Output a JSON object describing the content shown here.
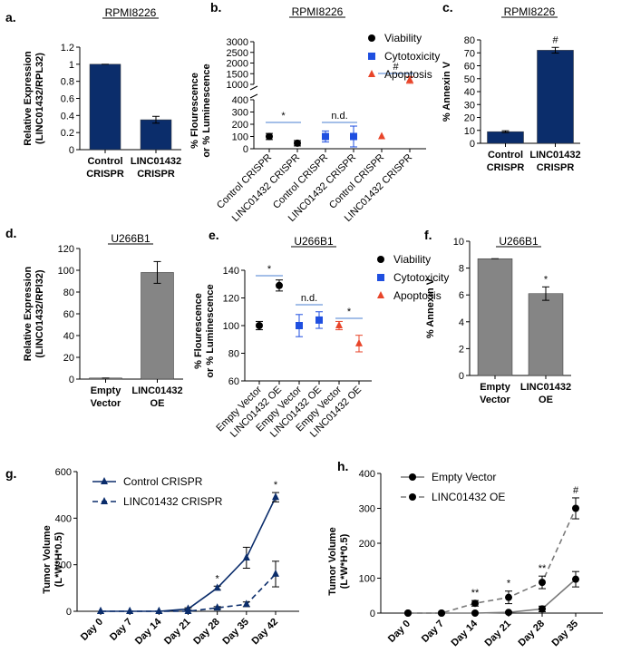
{
  "chart_data": [
    {
      "id": "a",
      "panel_label": "a.",
      "type": "bar",
      "title": "RPMI8226",
      "ylabel": [
        "Relative Expression",
        "(LINC01432/RPL32)"
      ],
      "categories": [
        [
          "Control",
          "CRISPR"
        ],
        [
          "LINC01432",
          "CRISPR"
        ]
      ],
      "values": [
        1.0,
        0.35
      ],
      "errors": [
        0,
        0.04
      ],
      "ylim": [
        0,
        1.2
      ],
      "yticks": [
        "0",
        "0.2",
        "0.4",
        "0.6",
        "0.8",
        "1",
        "1.2"
      ],
      "ytick_values": [
        0,
        0.2,
        0.4,
        0.6,
        0.8,
        1.0,
        1.2
      ],
      "color": "#0b2d6b",
      "annotations": []
    },
    {
      "id": "b",
      "panel_label": "b.",
      "type": "scatter",
      "title": "RPMI8226",
      "ylabel": [
        "% Flourescence",
        "or % Luminescence"
      ],
      "lower_ylim": [
        0,
        400
      ],
      "lower_yticks": [
        "0",
        "100",
        "200",
        "300",
        "400"
      ],
      "lower_ytick_values": [
        0,
        100,
        200,
        300,
        400
      ],
      "upper_ylim": [
        1000,
        3000
      ],
      "upper_yticks": [
        "1000",
        "1500",
        "2000",
        "2500",
        "3000"
      ],
      "upper_ytick_values": [
        1000,
        1500,
        2000,
        2500,
        3000
      ],
      "categories": [
        "Control CRISPR",
        "LINC01432 CRISPR",
        "Control CRISPR",
        "LINC01432 CRISPR",
        "Control CRISPR",
        "LINC01432 CRISPR"
      ],
      "series": [
        {
          "name": "Viability",
          "marker": "circle",
          "color": "#000000",
          "idx": [
            0,
            1
          ],
          "values": [
            100,
            45
          ],
          "errors": [
            25,
            22
          ]
        },
        {
          "name": "Cytotoxicity",
          "marker": "square",
          "color": "#1f4fe0",
          "idx": [
            2,
            3
          ],
          "values": [
            100,
            100
          ],
          "errors": [
            45,
            85
          ]
        },
        {
          "name": "Apoptosis",
          "marker": "triangle",
          "color": "#e8452a",
          "idx": [
            4,
            5
          ],
          "values": [
            100,
            1200
          ],
          "errors": [
            0,
            150
          ]
        }
      ],
      "annotations": [
        {
          "text": "*",
          "from": 0,
          "to": 1
        },
        {
          "text": "n.d.",
          "from": 2,
          "to": 3
        },
        {
          "text": "#",
          "from": 4,
          "to": 5
        }
      ],
      "legend_position": "top-right"
    },
    {
      "id": "c",
      "panel_label": "c.",
      "type": "bar",
      "title": "RPMI8226",
      "ylabel": [
        "% Annexin V"
      ],
      "categories": [
        [
          "Control",
          "CRISPR"
        ],
        [
          "LINC01432",
          "CRISPR"
        ]
      ],
      "values": [
        9,
        72
      ],
      "errors": [
        0.7,
        2.2
      ],
      "ylim": [
        0,
        80
      ],
      "yticks": [
        "0",
        "10",
        "20",
        "30",
        "40",
        "50",
        "60",
        "70",
        "80"
      ],
      "ytick_values": [
        0,
        10,
        20,
        30,
        40,
        50,
        60,
        70,
        80
      ],
      "color": "#0b2d6b",
      "annotations": [
        {
          "bar": 1,
          "text": "#"
        }
      ]
    },
    {
      "id": "d",
      "panel_label": "d.",
      "type": "bar",
      "title": "U266B1",
      "ylabel": [
        "Relative Expression",
        "(LINC01432/RPl32)"
      ],
      "categories": [
        [
          "Empty",
          "Vector"
        ],
        [
          "LINC01432",
          "OE"
        ]
      ],
      "values": [
        1,
        98
      ],
      "errors": [
        0,
        10
      ],
      "ylim": [
        0,
        120
      ],
      "yticks": [
        "0",
        "20",
        "40",
        "60",
        "80",
        "100",
        "120"
      ],
      "ytick_values": [
        0,
        20,
        40,
        60,
        80,
        100,
        120
      ],
      "color": "#858585",
      "annotations": []
    },
    {
      "id": "e",
      "panel_label": "e.",
      "type": "scatter",
      "title": "U266B1",
      "ylabel": [
        "% Flourescence",
        "or % Luminescence"
      ],
      "ylim": [
        60,
        140
      ],
      "yticks": [
        "60",
        "80",
        "100",
        "120",
        "140"
      ],
      "ytick_values": [
        60,
        80,
        100,
        120,
        140
      ],
      "categories": [
        "Empty Vector",
        "LINC01432 OE",
        "Empty Vector",
        "LINC01432 OE",
        "Empty Vector",
        "LINC01432 OE"
      ],
      "series": [
        {
          "name": "Viability",
          "marker": "circle",
          "color": "#000000",
          "idx": [
            0,
            1
          ],
          "values": [
            100,
            129
          ],
          "errors": [
            3,
            4
          ]
        },
        {
          "name": "Cytotoxicity",
          "marker": "square",
          "color": "#1f4fe0",
          "idx": [
            2,
            3
          ],
          "values": [
            100,
            104
          ],
          "errors": [
            8,
            6
          ]
        },
        {
          "name": "Apoptosis",
          "marker": "triangle",
          "color": "#e8452a",
          "idx": [
            4,
            5
          ],
          "values": [
            100,
            87
          ],
          "errors": [
            3,
            6
          ]
        }
      ],
      "annotations": [
        {
          "text": "*",
          "from": 0,
          "to": 1
        },
        {
          "text": "n.d.",
          "from": 2,
          "to": 3
        },
        {
          "text": "*",
          "from": 4,
          "to": 5
        }
      ],
      "legend_position": "top-right"
    },
    {
      "id": "f",
      "panel_label": "f.",
      "type": "bar",
      "title": "U266B1",
      "ylabel": [
        "% Annexin V"
      ],
      "categories": [
        [
          "Empty",
          "Vector"
        ],
        [
          "LINC01432",
          "OE"
        ]
      ],
      "values": [
        8.7,
        6.1
      ],
      "errors": [
        0,
        0.5
      ],
      "ylim": [
        0,
        10
      ],
      "yticks": [
        "0",
        "2",
        "4",
        "6",
        "8",
        "10"
      ],
      "ytick_values": [
        0,
        2,
        4,
        6,
        8,
        10
      ],
      "color": "#858585",
      "annotations": [
        {
          "bar": 1,
          "text": "*"
        }
      ]
    },
    {
      "id": "g",
      "panel_label": "g.",
      "type": "line",
      "title": "",
      "ylabel": [
        "Tumor Volume",
        "(L*W*H*0.5)"
      ],
      "categories": [
        "Day 0",
        "Day 7",
        "Day 14",
        "Day 21",
        "Day 28",
        "Day 35",
        "Day 42"
      ],
      "ylim": [
        0,
        600
      ],
      "yticks": [
        "0",
        "200",
        "400",
        "600"
      ],
      "ytick_values": [
        0,
        200,
        400,
        600
      ],
      "series": [
        {
          "name": "Control CRISPR",
          "marker": "triangle",
          "dash": "solid",
          "color": "#0b2d6b",
          "values": [
            0,
            0,
            0,
            10,
            100,
            230,
            490
          ],
          "errors": [
            0,
            0,
            0,
            5,
            8,
            45,
            20
          ]
        },
        {
          "name": "LINC01432 CRISPR",
          "marker": "triangle",
          "dash": "dashed",
          "color": "#0b2d6b",
          "values": [
            0,
            0,
            0,
            0,
            15,
            30,
            160
          ],
          "errors": [
            0,
            0,
            0,
            0,
            5,
            10,
            55
          ]
        }
      ],
      "annotations": [
        {
          "index": 4,
          "text": "*"
        },
        {
          "index": 6,
          "text": "*"
        }
      ],
      "legend_position": "top-left"
    },
    {
      "id": "h",
      "panel_label": "h.",
      "type": "line",
      "title": "",
      "ylabel": [
        "Tumor Volume",
        "(L*W*H*0.5)"
      ],
      "categories": [
        "Day 0",
        "Day 7",
        "Day 14",
        "Day 21",
        "Day 28",
        "Day 35"
      ],
      "ylim": [
        0,
        400
      ],
      "yticks": [
        "0",
        "100",
        "200",
        "300",
        "400"
      ],
      "ytick_values": [
        0,
        100,
        200,
        300,
        400
      ],
      "series": [
        {
          "name": "Empty Vector",
          "marker": "circle",
          "dash": "solid",
          "color": "#7a7a7a",
          "values": [
            0,
            0,
            0,
            2,
            12,
            97
          ],
          "errors": [
            0,
            0,
            0,
            2,
            8,
            22
          ]
        },
        {
          "name": "LINC01432 OE",
          "marker": "circle",
          "dash": "dashed",
          "color": "#7a7a7a",
          "values": [
            0,
            0,
            28,
            45,
            88,
            300
          ],
          "errors": [
            0,
            0,
            8,
            18,
            18,
            30
          ]
        }
      ],
      "annotations": [
        {
          "index": 2,
          "text": "**"
        },
        {
          "index": 3,
          "text": "*"
        },
        {
          "index": 4,
          "text": "**"
        },
        {
          "index": 5,
          "text": "#"
        }
      ],
      "legend_position": "top-left"
    }
  ]
}
